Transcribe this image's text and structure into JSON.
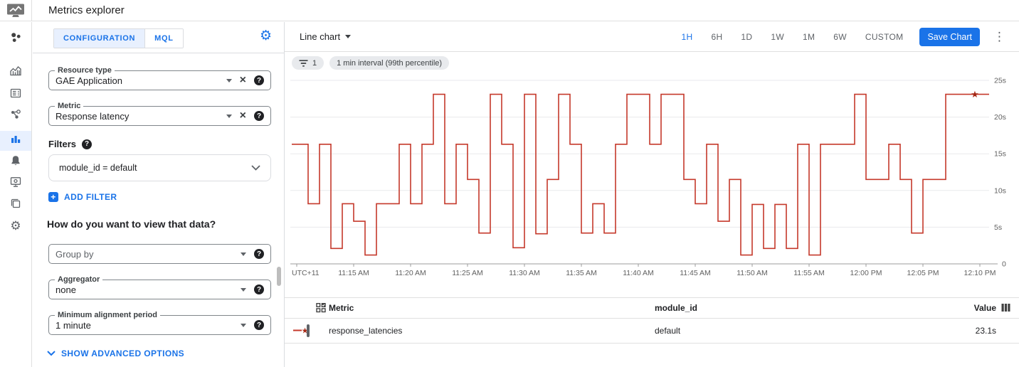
{
  "header": {
    "title": "Metrics explorer"
  },
  "rail": {
    "items": [
      {
        "name": "overview",
        "icon": "apps",
        "active": false
      },
      {
        "name": "metrics",
        "icon": "metrics",
        "active": false
      },
      {
        "name": "dashboards",
        "icon": "dash",
        "active": false
      },
      {
        "name": "services",
        "icon": "services",
        "active": false
      },
      {
        "name": "metrics-explorer",
        "icon": "explorer",
        "active": true
      },
      {
        "name": "alerting",
        "icon": "bell",
        "active": false
      },
      {
        "name": "uptime-checks",
        "icon": "uptime",
        "active": false
      },
      {
        "name": "groups",
        "icon": "groups",
        "active": false
      },
      {
        "name": "settings",
        "icon": "gear",
        "active": false
      }
    ]
  },
  "config": {
    "tabs": [
      {
        "label": "CONFIGURATION",
        "active": true
      },
      {
        "label": "MQL",
        "active": false
      }
    ],
    "resource_type": {
      "label": "Resource type",
      "value": "GAE Application"
    },
    "metric": {
      "label": "Metric",
      "value": "Response latency"
    },
    "filters_label": "Filters",
    "filter_chip": "module_id = default",
    "add_filter_label": "ADD FILTER",
    "view_heading": "How do you want to view that data?",
    "group_by": {
      "placeholder": "Group by"
    },
    "aggregator": {
      "label": "Aggregator",
      "value": "none"
    },
    "min_alignment": {
      "label": "Minimum alignment period",
      "value": "1 minute"
    },
    "show_advanced_label": "SHOW ADVANCED OPTIONS"
  },
  "toolbar": {
    "chart_type_label": "Line chart",
    "time_ranges": [
      "1H",
      "6H",
      "1D",
      "1W",
      "1M",
      "6W",
      "CUSTOM"
    ],
    "active_range": "1H",
    "save_label": "Save Chart"
  },
  "chips": [
    {
      "icon": "filter-list",
      "label": "1"
    },
    {
      "icon": null,
      "label": "1 min interval (99th percentile)"
    }
  ],
  "chart_data": {
    "type": "line",
    "style": "step-after",
    "unit": "s",
    "grid": "horizontal",
    "x_start_label": "11:10 AM",
    "x_step_minutes": 1,
    "x_tick_labels": [
      "UTC+11",
      "11:15 AM",
      "11:20 AM",
      "11:25 AM",
      "11:30 AM",
      "11:35 AM",
      "11:40 AM",
      "11:45 AM",
      "11:50 AM",
      "11:55 AM",
      "12:00 PM",
      "12:05 PM",
      "12:10 PM"
    ],
    "y_tick_labels": [
      "25s",
      "20s",
      "15s",
      "10s",
      "5s",
      "0"
    ],
    "ylim": [
      0,
      25
    ],
    "series": [
      {
        "name": "response_latencies",
        "color": "#c5392b",
        "marker_end": "star",
        "marker_color": "#a52714",
        "values": [
          16.3,
          8.2,
          16.3,
          2.1,
          8.2,
          5.8,
          1.2,
          8.2,
          8.2,
          16.3,
          8.2,
          16.3,
          23.1,
          8.2,
          16.3,
          11.5,
          4.2,
          23.1,
          16.3,
          2.2,
          23.1,
          4.1,
          11.5,
          23.1,
          16.3,
          4.2,
          8.2,
          4.2,
          16.3,
          23.1,
          23.1,
          16.3,
          23.1,
          23.1,
          11.5,
          8.2,
          16.3,
          5.8,
          11.5,
          1.2,
          8.1,
          2.1,
          8.1,
          2.1,
          16.3,
          1.2,
          16.3,
          16.3,
          16.3,
          23.1,
          11.5,
          11.5,
          16.3,
          11.5,
          4.2,
          11.5,
          11.5,
          23.1,
          23.1,
          23.1,
          23.1
        ]
      }
    ]
  },
  "table": {
    "headers": [
      "Metric",
      "module_id",
      "Value"
    ],
    "rows": [
      {
        "metric": "response_latencies",
        "module_id": "default",
        "value": "23.1s"
      }
    ]
  },
  "colors": {
    "accent": "#1a73e8",
    "active_tab_bg": "#e8f0fe",
    "line": "#c5392b",
    "star": "#a52714",
    "chip_bg": "#e8eaed"
  }
}
